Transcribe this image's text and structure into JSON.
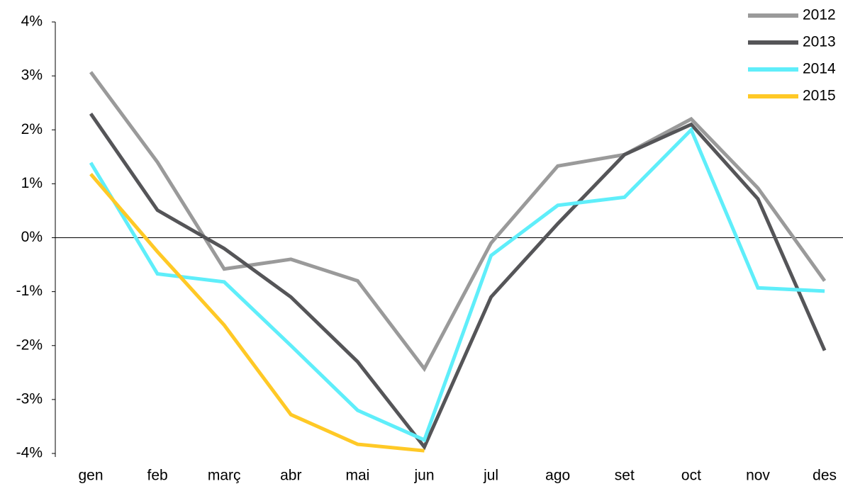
{
  "chart_data": {
    "type": "line",
    "categories": [
      "gen",
      "feb",
      "març",
      "abr",
      "mai",
      "jun",
      "jul",
      "ago",
      "set",
      "oct",
      "nov",
      "des"
    ],
    "series": [
      {
        "name": "2012",
        "color": "#9a9a9a",
        "values": [
          3.07,
          1.4,
          -0.58,
          -0.4,
          -0.8,
          -2.43,
          -0.1,
          1.33,
          1.54,
          2.2,
          0.92,
          -0.8
        ]
      },
      {
        "name": "2013",
        "color": "#555558",
        "values": [
          2.3,
          0.51,
          -0.2,
          -1.1,
          -2.3,
          -3.88,
          -1.1,
          0.26,
          1.54,
          2.1,
          0.72,
          -2.09
        ]
      },
      {
        "name": "2014",
        "color": "#5feefa",
        "values": [
          1.39,
          -0.67,
          -0.82,
          -2.0,
          -3.2,
          -3.75,
          -0.33,
          0.6,
          0.75,
          2.0,
          -0.93,
          -0.99
        ]
      },
      {
        "name": "2015",
        "color": "#ffc926",
        "values": [
          1.18,
          -0.26,
          -1.62,
          -3.28,
          -3.83,
          -3.95,
          null,
          null,
          null,
          null,
          null,
          null
        ]
      }
    ],
    "ylim": [
      -4,
      4
    ],
    "yticks": [
      {
        "value": 4,
        "label": "4%"
      },
      {
        "value": 3,
        "label": "3%"
      },
      {
        "value": 2,
        "label": "2%"
      },
      {
        "value": 1,
        "label": "1%"
      },
      {
        "value": 0,
        "label": "0%"
      },
      {
        "value": -1,
        "label": "-1%"
      },
      {
        "value": -2,
        "label": "-2%"
      },
      {
        "value": -3,
        "label": "-3%"
      },
      {
        "value": -4,
        "label": "-4%"
      }
    ],
    "legend": "upper right",
    "grid": false
  }
}
